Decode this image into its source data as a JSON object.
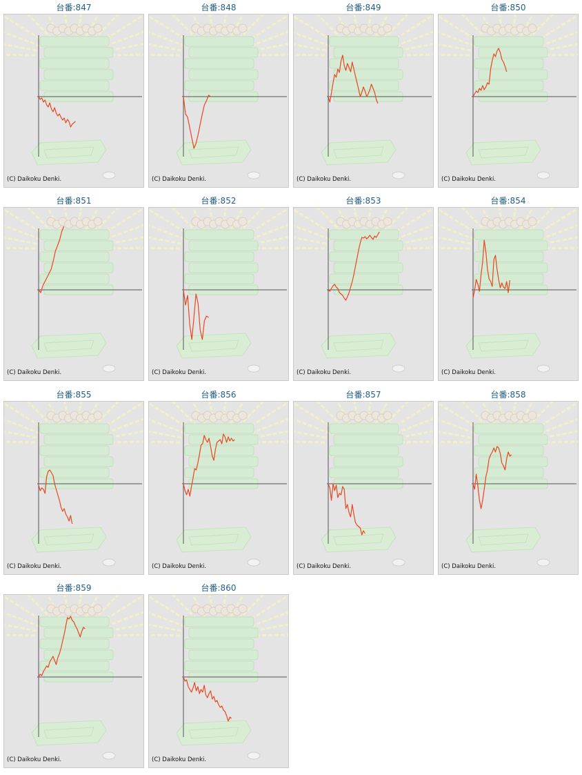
{
  "copyright": "(C) Daikoku Denki.",
  "colors": {
    "line": "#e8461e",
    "axis": "#555555",
    "title": "#1f5d8a",
    "background": "#e4e4e4"
  },
  "chart_data": [
    {
      "type": "line",
      "title": "台番:847",
      "x": [
        0,
        1,
        2,
        3,
        4,
        5,
        6,
        7,
        8,
        9,
        10,
        11,
        12,
        13,
        14,
        15,
        16,
        17,
        18,
        19,
        20,
        21,
        22,
        23
      ],
      "values": [
        0,
        -4,
        -2,
        -8,
        -5,
        -12,
        -15,
        -9,
        -18,
        -22,
        -16,
        -24,
        -28,
        -25,
        -30,
        -34,
        -31,
        -38,
        -33,
        -36,
        -44,
        -40,
        -38,
        -36
      ]
    },
    {
      "type": "line",
      "title": "台番:848",
      "x": [
        0,
        1,
        2,
        3,
        4,
        5,
        6,
        7,
        8,
        9,
        10,
        11,
        12,
        13
      ],
      "values": [
        0,
        -25,
        -30,
        -45,
        -60,
        -75,
        -68,
        -55,
        -40,
        -25,
        -12,
        -6,
        2,
        0
      ]
    },
    {
      "type": "line",
      "title": "台番:849",
      "x": [
        0,
        1,
        2,
        3,
        4,
        5,
        6,
        7,
        8,
        9,
        10,
        11,
        12,
        13,
        14,
        15,
        16,
        17,
        18,
        19,
        20,
        21,
        22,
        23,
        24,
        25,
        26,
        27,
        28,
        29,
        30,
        31
      ],
      "values": [
        0,
        -8,
        5,
        20,
        32,
        28,
        40,
        35,
        52,
        60,
        45,
        38,
        48,
        42,
        36,
        50,
        40,
        30,
        20,
        10,
        0,
        6,
        14,
        8,
        0,
        4,
        10,
        18,
        12,
        6,
        -4,
        -10
      ]
    },
    {
      "type": "line",
      "title": "台番:850",
      "x": [
        0,
        1,
        2,
        3,
        4,
        5,
        6,
        7,
        8,
        9,
        10,
        11,
        12,
        13,
        14,
        15,
        16,
        17,
        18,
        19,
        20,
        21
      ],
      "values": [
        0,
        4,
        8,
        6,
        12,
        9,
        16,
        10,
        14,
        20,
        18,
        40,
        52,
        62,
        58,
        66,
        70,
        64,
        54,
        50,
        44,
        36
      ]
    },
    {
      "type": "line",
      "title": "台番:851",
      "x": [
        0,
        1,
        2,
        3,
        4,
        5,
        6,
        7,
        8,
        9,
        10,
        11,
        12
      ],
      "values": [
        0,
        -4,
        6,
        12,
        18,
        24,
        30,
        42,
        56,
        64,
        72,
        84,
        92
      ]
    },
    {
      "type": "line",
      "title": "台番:852",
      "x": [
        0,
        1,
        2,
        3,
        4,
        5,
        6,
        7,
        8,
        9,
        10,
        11,
        12
      ],
      "values": [
        0,
        -22,
        -8,
        -50,
        -72,
        -40,
        -6,
        -20,
        -58,
        -72,
        -45,
        -38,
        -40
      ]
    },
    {
      "type": "line",
      "title": "台番:853",
      "x": [
        0,
        1,
        2,
        3,
        4,
        5,
        6,
        7,
        8,
        9,
        10,
        11,
        12,
        13,
        14,
        15,
        16,
        17,
        18,
        19,
        20,
        21,
        22,
        23,
        24,
        25,
        26,
        27,
        28,
        29,
        30,
        31,
        32
      ],
      "values": [
        0,
        -2,
        2,
        6,
        8,
        4,
        2,
        -4,
        -6,
        -8,
        -12,
        -15,
        -10,
        -4,
        4,
        12,
        22,
        34,
        46,
        58,
        68,
        76,
        75,
        77,
        74,
        76,
        79,
        76,
        73,
        78,
        76,
        80,
        84
      ]
    },
    {
      "type": "line",
      "title": "台番:854",
      "x": [
        0,
        1,
        2,
        3,
        4,
        5,
        6,
        7,
        8,
        9,
        10,
        11,
        12,
        13,
        14,
        15,
        16,
        17,
        18,
        19,
        20,
        21,
        22,
        23
      ],
      "values": [
        -12,
        0,
        15,
        8,
        -2,
        22,
        40,
        72,
        55,
        30,
        16,
        12,
        5,
        44,
        50,
        30,
        15,
        3,
        10,
        4,
        2,
        12,
        -4,
        14
      ]
    },
    {
      "type": "line",
      "title": "台番:855",
      "x": [
        0,
        1,
        2,
        3,
        4,
        5,
        6,
        7,
        8,
        9,
        10,
        11,
        12,
        13,
        14,
        15,
        16,
        17,
        18,
        19,
        20,
        21
      ],
      "values": [
        -2,
        -10,
        -6,
        -8,
        -14,
        10,
        18,
        20,
        16,
        12,
        0,
        -8,
        -16,
        -24,
        -34,
        -40,
        -36,
        -44,
        -48,
        -54,
        -46,
        -58
      ]
    },
    {
      "type": "line",
      "title": "台番:856",
      "x": [
        0,
        1,
        2,
        3,
        4,
        5,
        6,
        7,
        8,
        9,
        10,
        11,
        12,
        13,
        14,
        15,
        16,
        17,
        18,
        19,
        20,
        21,
        22,
        23,
        24,
        25,
        26,
        27,
        28,
        29,
        30,
        31,
        32
      ],
      "values": [
        0,
        -10,
        -16,
        -8,
        -18,
        -4,
        8,
        22,
        20,
        30,
        42,
        56,
        58,
        70,
        64,
        60,
        66,
        54,
        40,
        34,
        50,
        60,
        62,
        64,
        58,
        72,
        68,
        60,
        68,
        62,
        66,
        62,
        64
      ]
    },
    {
      "type": "line",
      "title": "台番:857",
      "x": [
        0,
        1,
        2,
        3,
        4,
        5,
        6,
        7,
        8,
        9,
        10,
        11,
        12,
        13,
        14,
        15,
        16,
        17,
        18,
        19,
        20,
        21,
        22,
        23
      ],
      "values": [
        0,
        -6,
        -24,
        0,
        -10,
        -2,
        -20,
        -14,
        -16,
        -4,
        -8,
        -36,
        -30,
        -42,
        -48,
        -30,
        -44,
        -56,
        -60,
        -62,
        -64,
        -74,
        -68,
        -72
      ]
    },
    {
      "type": "line",
      "title": "台番:858",
      "x": [
        0,
        1,
        2,
        3,
        4,
        5,
        6,
        7,
        8,
        9,
        10,
        11,
        12,
        13,
        14,
        15,
        16,
        17,
        18,
        19,
        20,
        21,
        22,
        23,
        24
      ],
      "values": [
        0,
        -8,
        14,
        -4,
        -24,
        -36,
        -24,
        -8,
        10,
        20,
        36,
        42,
        46,
        52,
        46,
        54,
        52,
        44,
        30,
        26,
        20,
        36,
        46,
        40,
        42
      ]
    },
    {
      "type": "line",
      "title": "台番:859",
      "x": [
        0,
        1,
        2,
        3,
        4,
        5,
        6,
        7,
        8,
        9,
        10,
        11,
        12,
        13,
        14,
        15,
        16,
        17,
        18,
        19,
        20,
        21,
        22,
        23,
        24,
        25,
        26,
        27,
        28,
        29
      ],
      "values": [
        0,
        4,
        2,
        8,
        12,
        16,
        14,
        22,
        26,
        30,
        24,
        18,
        28,
        34,
        42,
        52,
        62,
        74,
        86,
        84,
        88,
        82,
        80,
        74,
        70,
        64,
        58,
        66,
        72,
        70
      ]
    },
    {
      "type": "line",
      "title": "台番:860",
      "x": [
        0,
        1,
        2,
        3,
        4,
        5,
        6,
        7,
        8,
        9,
        10,
        11,
        12,
        13,
        14,
        15,
        16,
        17,
        18,
        19,
        20,
        21,
        22,
        23,
        24,
        25,
        26,
        27,
        28,
        29,
        30
      ],
      "values": [
        0,
        -6,
        -4,
        -14,
        -18,
        -22,
        -16,
        -8,
        -20,
        -14,
        -24,
        -18,
        -22,
        -12,
        -26,
        -30,
        -24,
        -20,
        -32,
        -28,
        -36,
        -34,
        -40,
        -44,
        -42,
        -48,
        -50,
        -56,
        -64,
        -58,
        -60
      ]
    }
  ]
}
